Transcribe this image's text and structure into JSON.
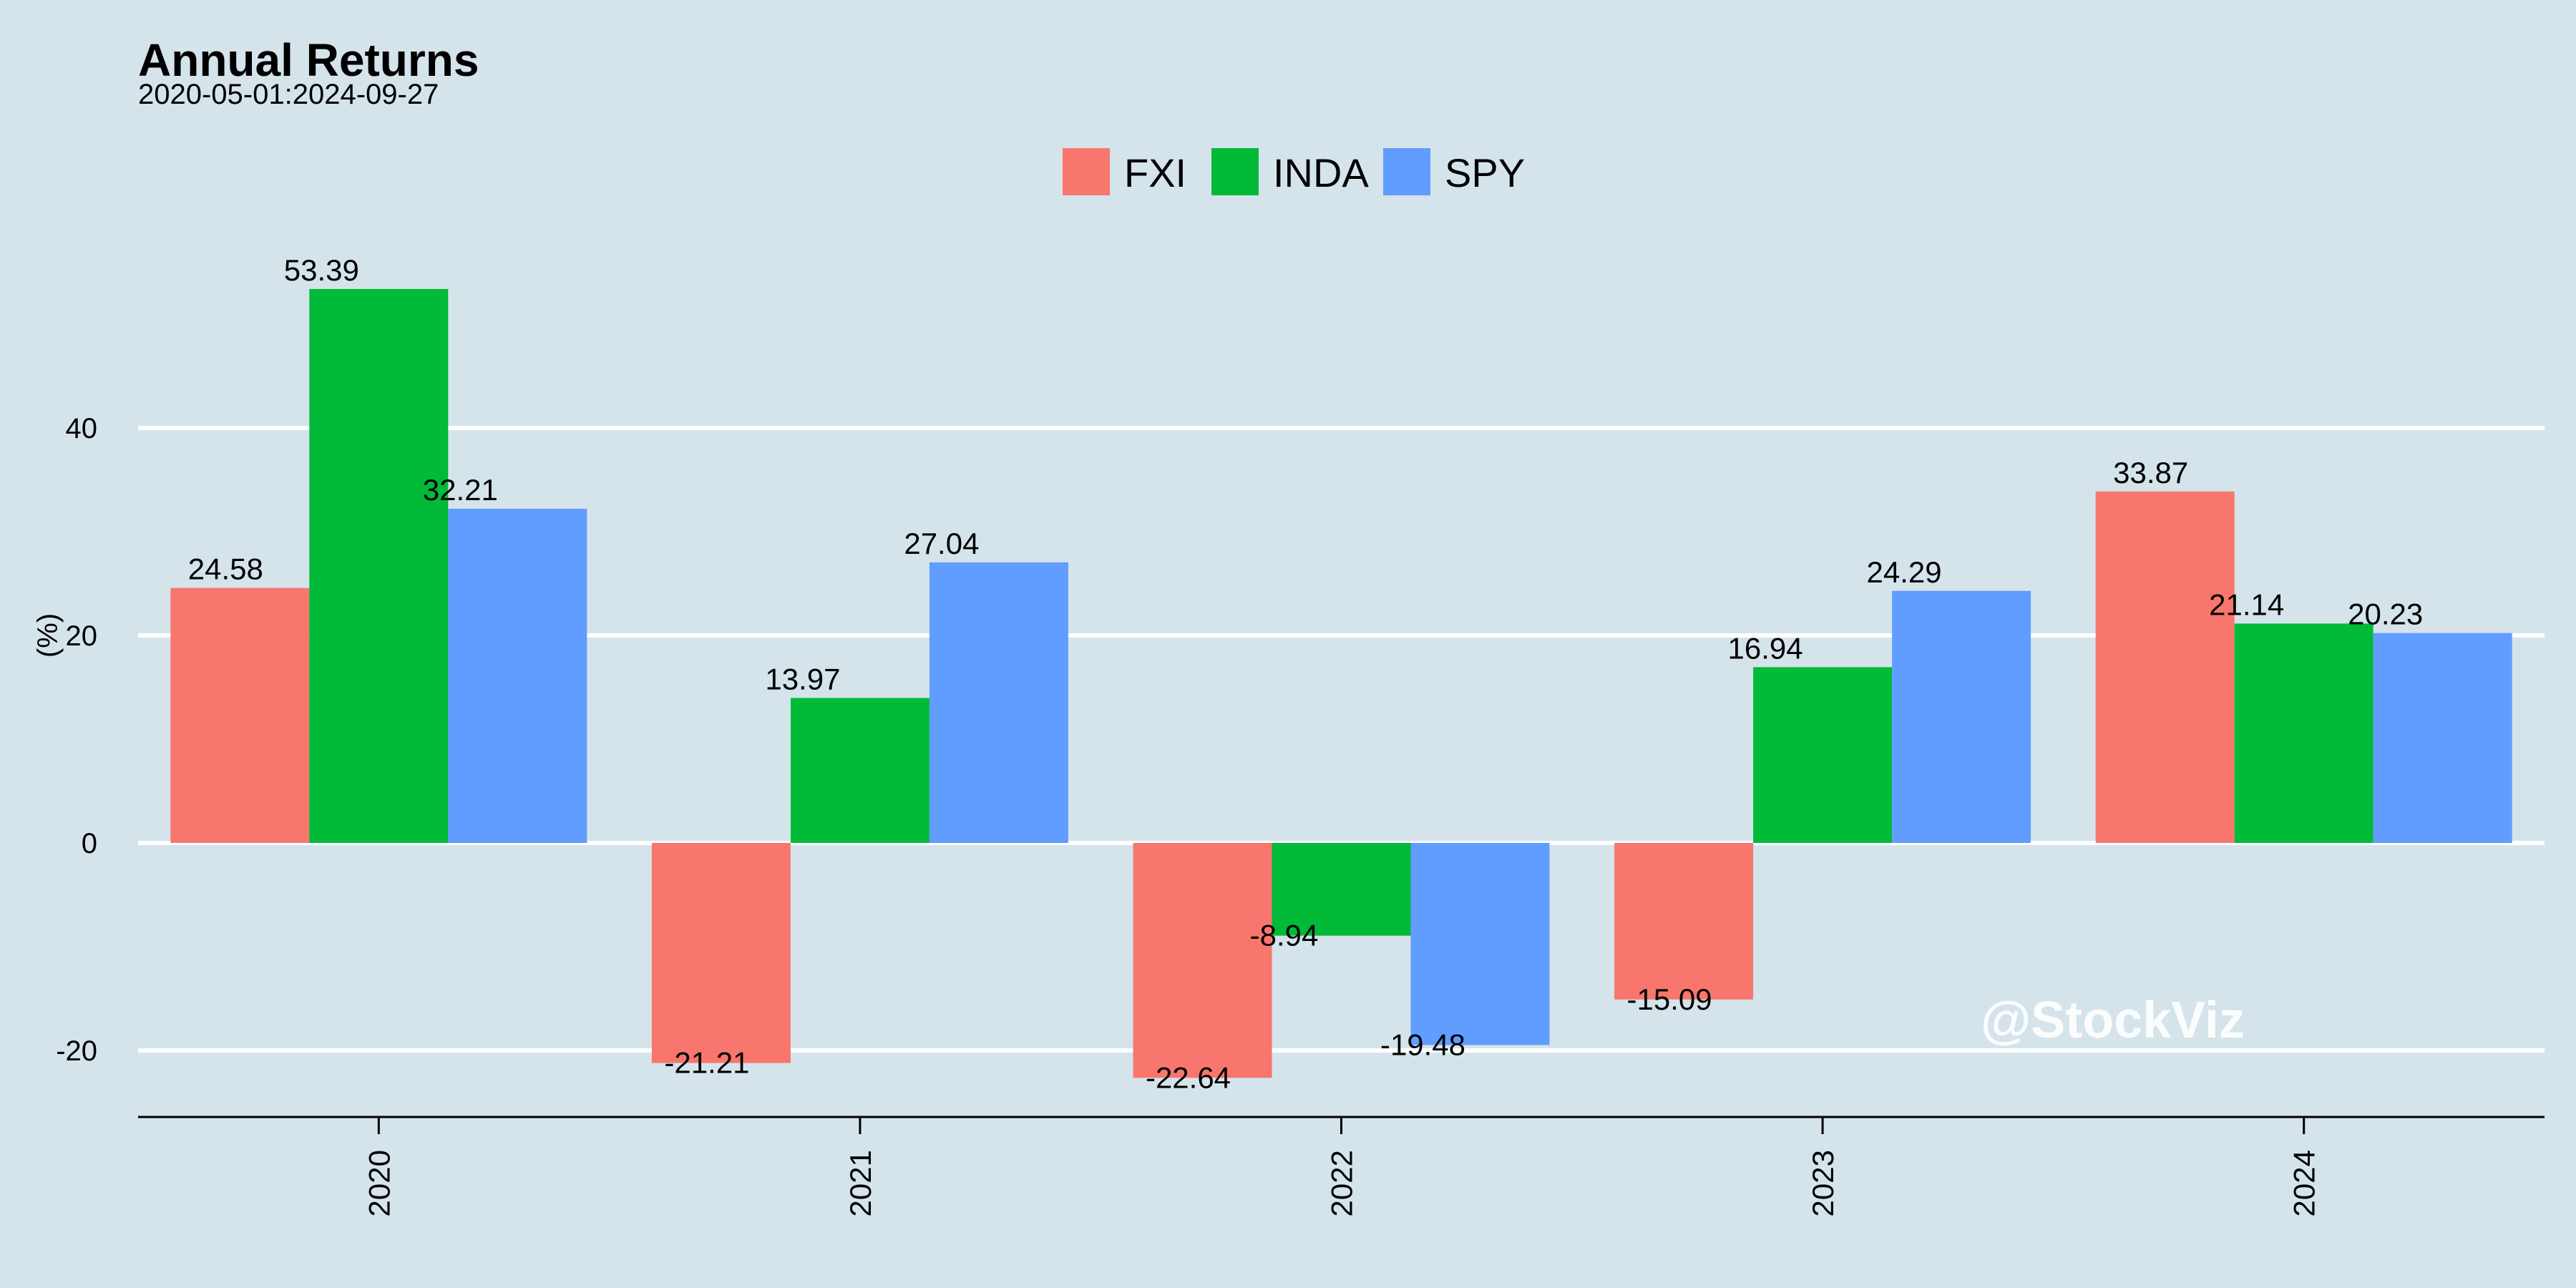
{
  "chart_data": {
    "type": "bar",
    "title": "Annual Returns",
    "subtitle": "2020-05-01:2024-09-27",
    "xlabel": "",
    "ylabel": "(%)",
    "categories": [
      "2020",
      "2021",
      "2022",
      "2023",
      "2024"
    ],
    "series": [
      {
        "name": "FXI",
        "color": "#f8766d",
        "values": [
          24.58,
          -21.21,
          -22.64,
          -15.09,
          33.87
        ]
      },
      {
        "name": "INDA",
        "color": "#00ba38",
        "values": [
          53.39,
          13.97,
          -8.94,
          16.94,
          21.14
        ]
      },
      {
        "name": "SPY",
        "color": "#619cff",
        "values": [
          32.21,
          27.04,
          -19.48,
          24.29,
          20.23
        ]
      }
    ],
    "yticks": [
      -20,
      0,
      20,
      40
    ],
    "ylim": [
      -26,
      62
    ],
    "grid": true,
    "legend_position": "top-center",
    "watermark": "@StockViz",
    "background_color": "#d5e4eb",
    "grid_color": "#ffffff"
  }
}
